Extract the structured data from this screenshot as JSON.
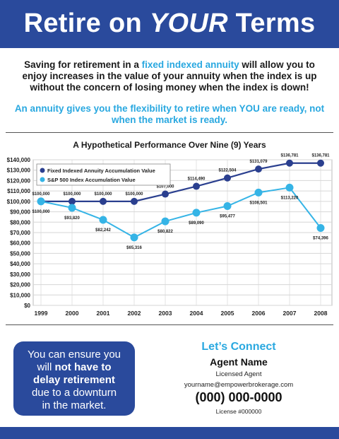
{
  "header": {
    "title_pre": "Retire on ",
    "title_em": "YOUR",
    "title_post": " Terms"
  },
  "intro": {
    "p1": "Saving for retirement in a ",
    "highlight": "fixed indexed annuity",
    "p2": " will allow you to enjoy increases in the value of your annuity when the index is up without the concern of losing money when the index is down!"
  },
  "tagline": "An annuity gives you the flexibility to retire when YOU are ready, not when the market is ready.",
  "chart_data": {
    "type": "line",
    "title": "A Hypothetical Performance Over Nine (9) Years",
    "xlabel": "",
    "ylabel": "",
    "categories": [
      "1999",
      "2000",
      "2001",
      "2002",
      "2003",
      "2004",
      "2005",
      "2006",
      "2007",
      "2008"
    ],
    "ylim": [
      0,
      140000
    ],
    "yticks": [
      0,
      10000,
      20000,
      30000,
      40000,
      50000,
      60000,
      70000,
      80000,
      90000,
      100000,
      110000,
      120000,
      130000,
      140000
    ],
    "ytick_labels": [
      "$0",
      "$10,000",
      "$20,000",
      "$30,000",
      "$40,000",
      "$50,000",
      "$60,000",
      "$70,000",
      "$80,000",
      "$90,000",
      "$100,000",
      "$110,000",
      "$120,000",
      "$130,000",
      "$140,000"
    ],
    "grid": true,
    "legend_position": "top-left",
    "series": [
      {
        "name": "Fixed Indexed Annuity Accumulation Value",
        "color": "#2a3f8f",
        "values": [
          100000,
          100000,
          100000,
          100000,
          107000,
          114490,
          122504,
          131079,
          136781,
          136781
        ],
        "labels": [
          "$100,000",
          "$100,000",
          "$100,000",
          "$100,000",
          "$107,000",
          "$114,490",
          "$122,504",
          "$131,079",
          "$136,781",
          "$136,781"
        ],
        "label_pos": "above"
      },
      {
        "name": "S&P 500 Index Accumulation Value",
        "color": "#35b4e6",
        "values": [
          100000,
          93820,
          82242,
          65316,
          80822,
          89090,
          95477,
          108501,
          113220,
          74396
        ],
        "labels": [
          "$100,000",
          "$93,820",
          "$82,242",
          "$65,316",
          "$80,822",
          "$89,090",
          "$95,477",
          "$108,501",
          "$113,220",
          "$74,396"
        ],
        "label_pos": "below"
      }
    ]
  },
  "cta": {
    "l1": "You can ensure you",
    "l2_pre": "will ",
    "l2_bold": "not have to",
    "l3_bold": "delay retirement",
    "l4": "due to a downturn",
    "l5": "in the market."
  },
  "contact": {
    "heading": "Let’s Connect",
    "name": "Agent Name",
    "role": "Licensed Agent",
    "email": "yourname@empowerbrokerage.com",
    "phone": "(000) 000-0000",
    "license": "License #000000"
  },
  "colors": {
    "brand_blue": "#2a4a9c",
    "accent_cyan": "#29a8e0"
  }
}
